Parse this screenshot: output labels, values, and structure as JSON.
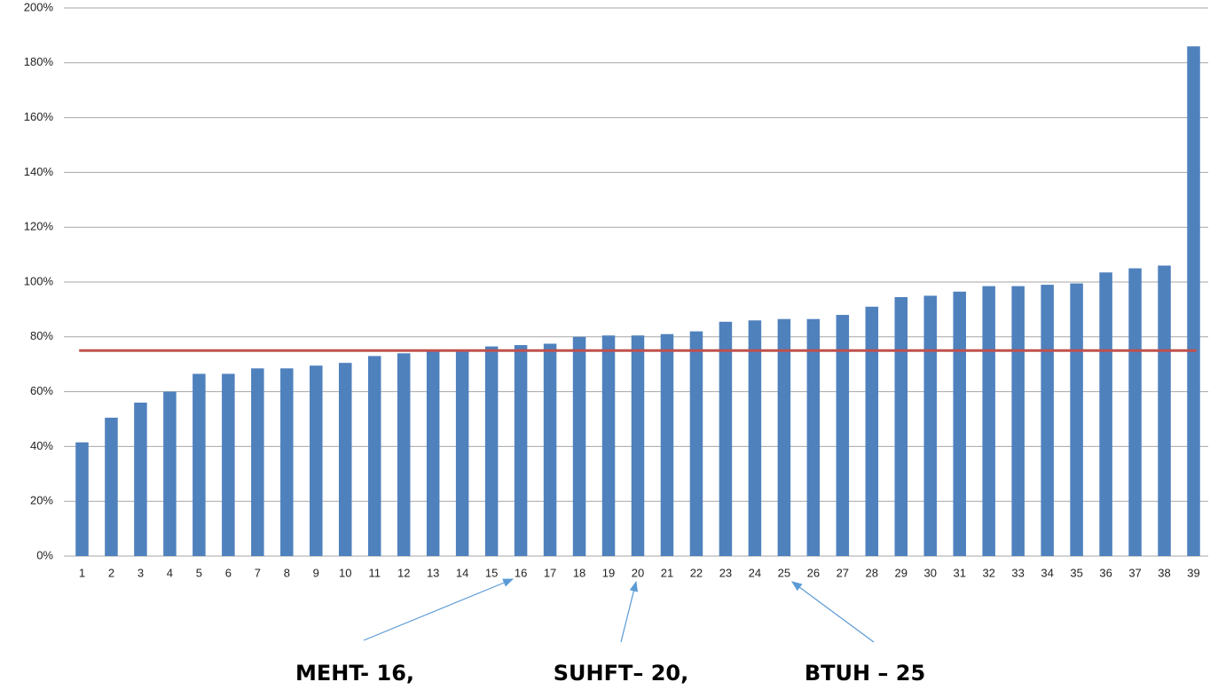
{
  "chart_data": {
    "type": "bar",
    "categories": [
      "1",
      "2",
      "3",
      "4",
      "5",
      "6",
      "7",
      "8",
      "9",
      "10",
      "11",
      "12",
      "13",
      "14",
      "15",
      "16",
      "17",
      "18",
      "19",
      "20",
      "21",
      "22",
      "23",
      "24",
      "25",
      "26",
      "27",
      "28",
      "29",
      "30",
      "31",
      "32",
      "33",
      "34",
      "35",
      "36",
      "37",
      "38",
      "39"
    ],
    "values": [
      41.5,
      50.5,
      56,
      60,
      66.5,
      66.5,
      68.5,
      68.5,
      69.5,
      70.5,
      73,
      74,
      75,
      75,
      76.5,
      77,
      77.5,
      80,
      80.5,
      80.5,
      81,
      82,
      85.5,
      86,
      86.5,
      86.5,
      88,
      91,
      94.5,
      95,
      96.5,
      98.5,
      98.5,
      99,
      99.5,
      103.5,
      105,
      106,
      186
    ],
    "color": "#4f81bd",
    "ylim": [
      0,
      200
    ],
    "yticks": [
      {
        "value": 0,
        "label": "0%"
      },
      {
        "value": 20,
        "label": "20%"
      },
      {
        "value": 40,
        "label": "40%"
      },
      {
        "value": 60,
        "label": "60%"
      },
      {
        "value": 80,
        "label": "80%"
      },
      {
        "value": 100,
        "label": "100%"
      },
      {
        "value": 120,
        "label": "120%"
      },
      {
        "value": 140,
        "label": "140%"
      },
      {
        "value": 160,
        "label": "160%"
      },
      {
        "value": 180,
        "label": "180%"
      },
      {
        "value": 200,
        "label": "200%"
      }
    ],
    "grid": true,
    "reference_line": {
      "value": 75,
      "color": "#c0504d"
    },
    "annotations": [
      "MEHT- 16,",
      "SUHFT– 20,",
      "BTUH – 25"
    ]
  }
}
